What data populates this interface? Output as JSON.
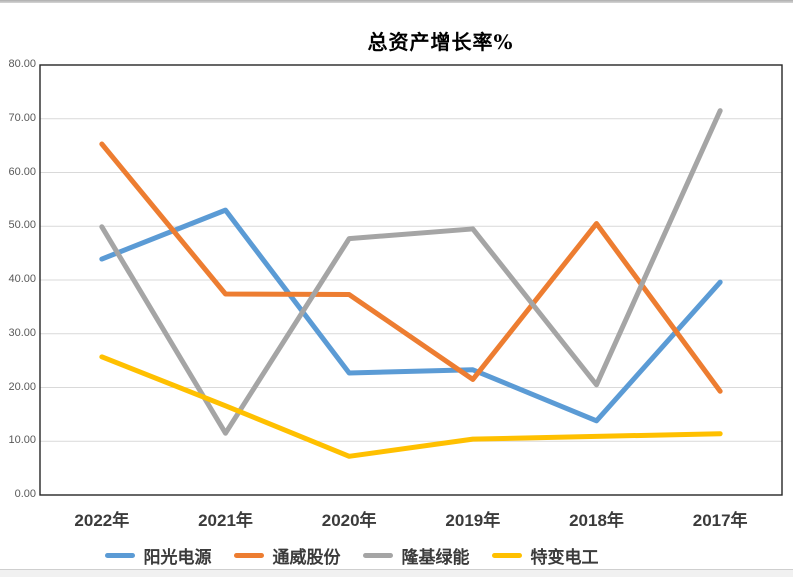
{
  "window": {
    "background": "#ffffff"
  },
  "chart_data": {
    "type": "line",
    "title": "总资产增长率%",
    "categories": [
      "2022年",
      "2021年",
      "2020年",
      "2019年",
      "2018年",
      "2017年"
    ],
    "series": [
      {
        "name": "阳光电源",
        "color": "#5B9BD5",
        "values": [
          43.9,
          53.0,
          22.7,
          23.3,
          13.8,
          39.6
        ]
      },
      {
        "name": "通威股份",
        "color": "#ED7D31",
        "values": [
          65.3,
          37.4,
          37.3,
          21.5,
          50.5,
          19.3
        ]
      },
      {
        "name": "隆基绿能",
        "color": "#A5A5A5",
        "values": [
          49.9,
          11.5,
          47.7,
          49.5,
          20.5,
          71.5
        ]
      },
      {
        "name": "特变电工",
        "color": "#FFC000",
        "values": [
          25.7,
          16.6,
          7.2,
          10.4,
          10.9,
          11.4
        ]
      }
    ],
    "ylim": [
      0,
      80
    ],
    "ytick_step": 10,
    "ytick_labels": [
      "0.00",
      "10.00",
      "20.00",
      "30.00",
      "40.00",
      "50.00",
      "60.00",
      "70.00",
      "80.00"
    ],
    "xlabel": "",
    "ylabel": "",
    "grid": true,
    "gridline_color": "#D9D9D9",
    "plot_border_color": "#262626",
    "legend_position": "bottom"
  }
}
